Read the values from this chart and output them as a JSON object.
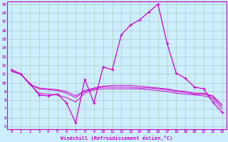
{
  "xlabel": "Windchill (Refroidissement éolien,°C)",
  "hours": [
    0,
    1,
    2,
    3,
    4,
    5,
    6,
    7,
    8,
    9,
    10,
    11,
    12,
    13,
    14,
    15,
    16,
    17,
    18,
    19,
    20,
    21,
    22,
    23
  ],
  "line1": [
    11.5,
    11.0,
    9.9,
    8.6,
    8.5,
    8.7,
    7.7,
    5.4,
    10.4,
    7.7,
    11.8,
    11.5,
    15.5,
    16.6,
    17.2,
    18.1,
    19.0,
    14.5,
    11.1,
    10.5,
    9.5,
    9.3,
    7.8,
    6.6
  ],
  "line2": [
    11.3,
    11.0,
    9.8,
    8.8,
    8.7,
    8.6,
    8.3,
    7.8,
    8.8,
    9.2,
    9.3,
    9.3,
    9.3,
    9.3,
    9.3,
    9.2,
    9.1,
    9.0,
    8.8,
    8.7,
    8.6,
    8.5,
    8.2,
    7.0
  ],
  "line3": [
    11.3,
    11.0,
    9.8,
    9.3,
    9.2,
    9.1,
    8.8,
    8.3,
    9.0,
    9.3,
    9.5,
    9.5,
    9.5,
    9.5,
    9.4,
    9.4,
    9.3,
    9.2,
    9.0,
    8.9,
    8.7,
    8.7,
    8.4,
    7.3
  ],
  "line4": [
    11.3,
    11.0,
    9.8,
    9.4,
    9.3,
    9.2,
    9.0,
    8.5,
    9.1,
    9.4,
    9.6,
    9.7,
    9.7,
    9.7,
    9.6,
    9.5,
    9.4,
    9.3,
    9.1,
    9.0,
    8.8,
    8.8,
    8.5,
    7.5
  ],
  "line_color": "#cc00cc",
  "bg_color": "#cceeff",
  "grid_color": "#aaccbb",
  "ylim_min": 5,
  "ylim_max": 19,
  "xlim_min": 0,
  "xlim_max": 23
}
